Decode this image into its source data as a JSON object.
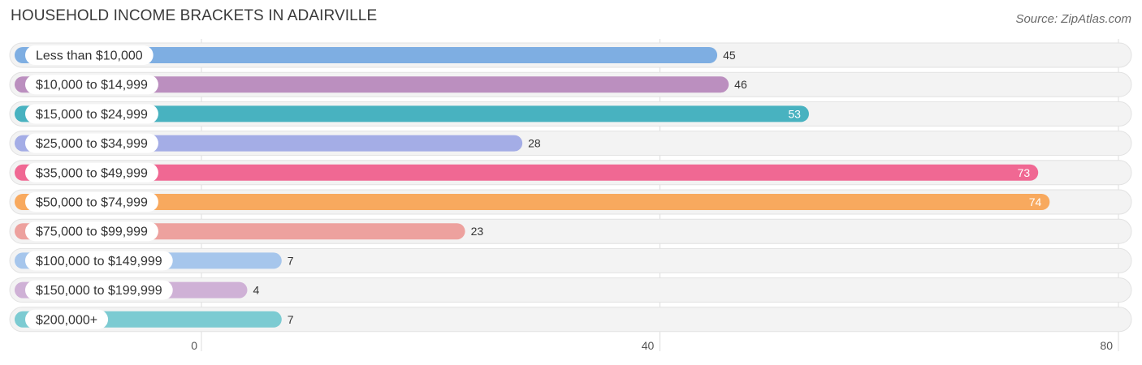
{
  "header": {
    "title": "HOUSEHOLD INCOME BRACKETS IN ADAIRVILLE",
    "source": "Source: ZipAtlas.com"
  },
  "chart_data": {
    "type": "bar",
    "orientation": "horizontal",
    "title": "HOUSEHOLD INCOME BRACKETS IN ADAIRVILLE",
    "xlabel": "",
    "ylabel": "",
    "xlim": [
      0,
      80
    ],
    "ticks": [
      0,
      40,
      80
    ],
    "grid": true,
    "categories": [
      "Less than $10,000",
      "$10,000 to $14,999",
      "$15,000 to $24,999",
      "$25,000 to $34,999",
      "$35,000 to $49,999",
      "$50,000 to $74,999",
      "$75,000 to $99,999",
      "$100,000 to $149,999",
      "$150,000 to $199,999",
      "$200,000+"
    ],
    "values": [
      45,
      46,
      53,
      28,
      73,
      74,
      23,
      7,
      4,
      7
    ],
    "colors": [
      "#7eaee2",
      "#bb8fbf",
      "#48b2c0",
      "#a4ade6",
      "#f06893",
      "#f8a95e",
      "#eda19e",
      "#a6c6ec",
      "#cfb1d6",
      "#7ccbd2"
    ]
  }
}
